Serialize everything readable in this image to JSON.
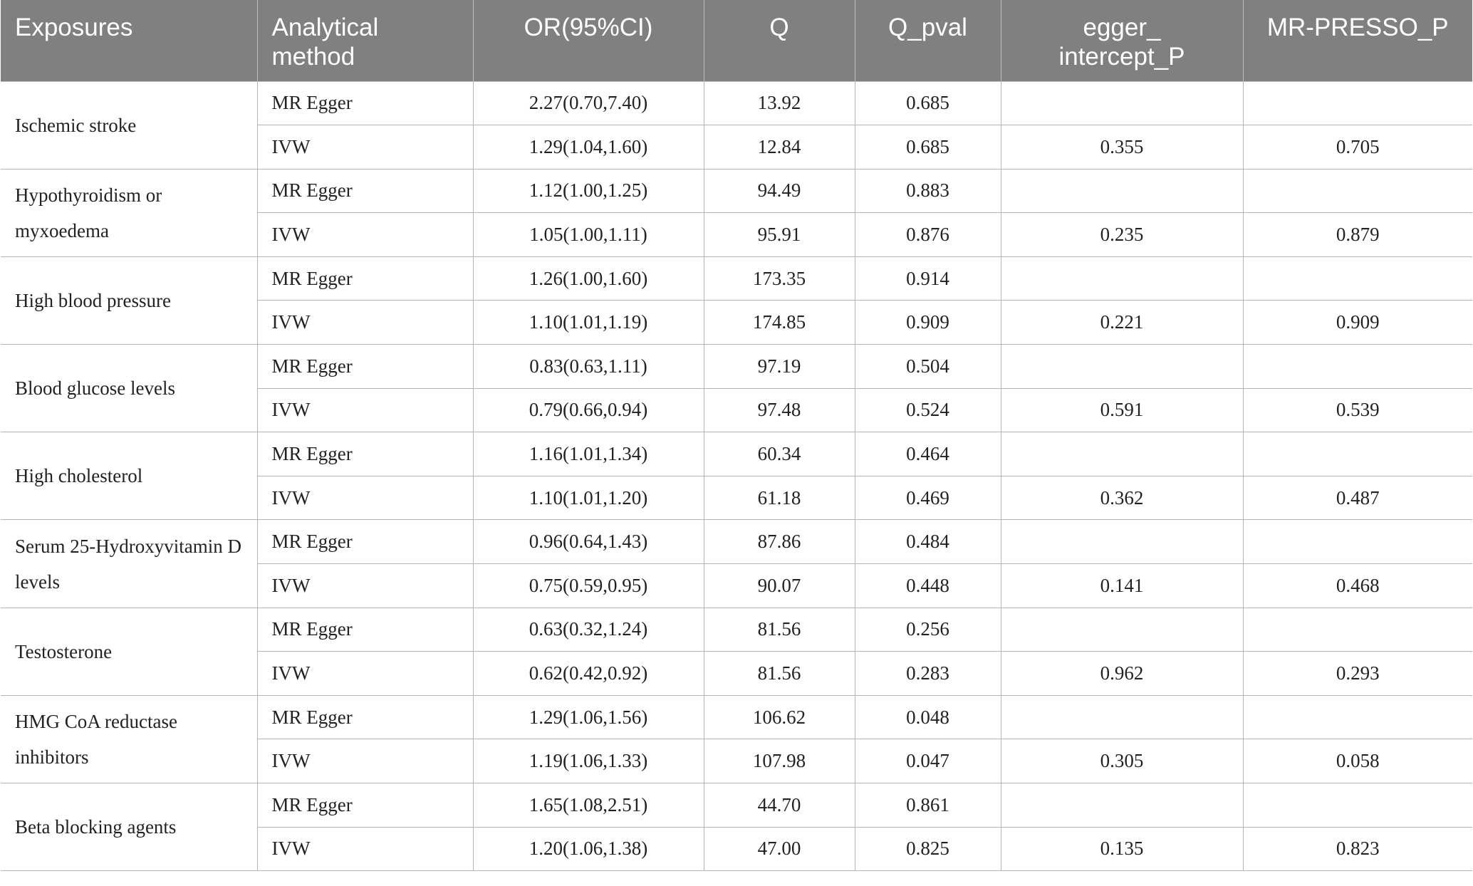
{
  "table": {
    "headers": {
      "exposures": "Exposures",
      "method_line1": "Analytical",
      "method_line2": "method",
      "or": "OR(95%CI)",
      "q": "Q",
      "q_pval": "Q_pval",
      "egger_line1": "egger_",
      "egger_line2": "intercept_P",
      "presso": "MR-PRESSO_P"
    },
    "groups": [
      {
        "exposure": "Ischemic stroke",
        "rows": [
          {
            "method": "MR Egger",
            "or": "2.27(0.70,7.40)",
            "q": "13.92",
            "q_pval": "0.685",
            "egger_p": "",
            "presso_p": ""
          },
          {
            "method": "IVW",
            "or": "1.29(1.04,1.60)",
            "q": "12.84",
            "q_pval": "0.685",
            "egger_p": "0.355",
            "presso_p": "0.705"
          }
        ]
      },
      {
        "exposure": "Hypothyroidism or myxoedema",
        "rows": [
          {
            "method": "MR Egger",
            "or": "1.12(1.00,1.25)",
            "q": "94.49",
            "q_pval": "0.883",
            "egger_p": "",
            "presso_p": ""
          },
          {
            "method": "IVW",
            "or": "1.05(1.00,1.11)",
            "q": "95.91",
            "q_pval": "0.876",
            "egger_p": "0.235",
            "presso_p": "0.879"
          }
        ]
      },
      {
        "exposure": "High blood pressure",
        "rows": [
          {
            "method": "MR Egger",
            "or": "1.26(1.00,1.60)",
            "q": "173.35",
            "q_pval": "0.914",
            "egger_p": "",
            "presso_p": ""
          },
          {
            "method": "IVW",
            "or": "1.10(1.01,1.19)",
            "q": "174.85",
            "q_pval": "0.909",
            "egger_p": "0.221",
            "presso_p": "0.909"
          }
        ]
      },
      {
        "exposure": "Blood glucose levels",
        "rows": [
          {
            "method": "MR Egger",
            "or": "0.83(0.63,1.11)",
            "q": "97.19",
            "q_pval": "0.504",
            "egger_p": "",
            "presso_p": ""
          },
          {
            "method": "IVW",
            "or": "0.79(0.66,0.94)",
            "q": "97.48",
            "q_pval": "0.524",
            "egger_p": "0.591",
            "presso_p": "0.539"
          }
        ]
      },
      {
        "exposure": "High cholesterol",
        "rows": [
          {
            "method": "MR Egger",
            "or": "1.16(1.01,1.34)",
            "q": "60.34",
            "q_pval": "0.464",
            "egger_p": "",
            "presso_p": ""
          },
          {
            "method": "IVW",
            "or": "1.10(1.01,1.20)",
            "q": "61.18",
            "q_pval": "0.469",
            "egger_p": "0.362",
            "presso_p": "0.487"
          }
        ]
      },
      {
        "exposure": "Serum 25-Hydroxyvitamin D levels",
        "rows": [
          {
            "method": "MR Egger",
            "or": "0.96(0.64,1.43)",
            "q": "87.86",
            "q_pval": "0.484",
            "egger_p": "",
            "presso_p": ""
          },
          {
            "method": "IVW",
            "or": "0.75(0.59,0.95)",
            "q": "90.07",
            "q_pval": "0.448",
            "egger_p": "0.141",
            "presso_p": "0.468"
          }
        ]
      },
      {
        "exposure": "Testosterone",
        "rows": [
          {
            "method": "MR Egger",
            "or": "0.63(0.32,1.24)",
            "q": "81.56",
            "q_pval": "0.256",
            "egger_p": "",
            "presso_p": ""
          },
          {
            "method": "IVW",
            "or": "0.62(0.42,0.92)",
            "q": "81.56",
            "q_pval": "0.283",
            "egger_p": "0.962",
            "presso_p": "0.293"
          }
        ]
      },
      {
        "exposure": "HMG CoA reductase inhibitors",
        "rows": [
          {
            "method": "MR Egger",
            "or": "1.29(1.06,1.56)",
            "q": "106.62",
            "q_pval": "0.048",
            "egger_p": "",
            "presso_p": ""
          },
          {
            "method": "IVW",
            "or": "1.19(1.06,1.33)",
            "q": "107.98",
            "q_pval": "0.047",
            "egger_p": "0.305",
            "presso_p": "0.058"
          }
        ]
      },
      {
        "exposure": "Beta blocking agents",
        "rows": [
          {
            "method": "MR Egger",
            "or": "1.65(1.08,2.51)",
            "q": "44.70",
            "q_pval": "0.861",
            "egger_p": "",
            "presso_p": ""
          },
          {
            "method": "IVW",
            "or": "1.20(1.06,1.38)",
            "q": "47.00",
            "q_pval": "0.825",
            "egger_p": "0.135",
            "presso_p": "0.823"
          }
        ]
      }
    ],
    "colors": {
      "header_bg": "#808080",
      "header_text": "#ffffff",
      "grid": "#b5b5b5",
      "body_text": "#222222"
    }
  }
}
